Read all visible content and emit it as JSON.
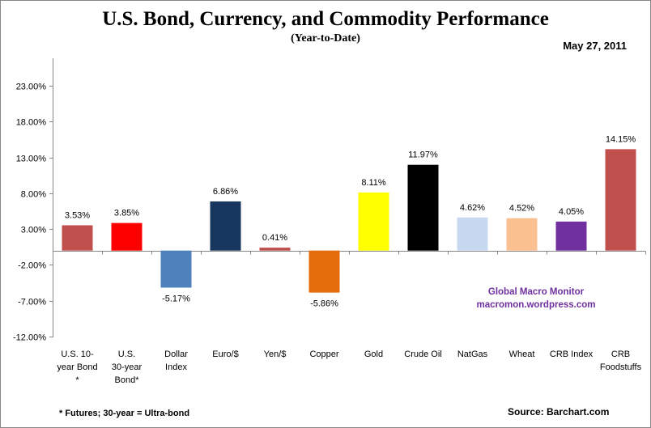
{
  "chart_data": {
    "type": "bar",
    "title": "U.S. Bond, Currency, and Commodity Performance",
    "subtitle": "(Year-to-Date)",
    "date": "May 27, 2011",
    "xlabel": "",
    "ylabel": "",
    "ylim": [
      -12,
      23
    ],
    "yticks": [
      23,
      18,
      13,
      8,
      3,
      -2,
      -7,
      -12
    ],
    "ytick_labels": [
      "23.00%",
      "18.00%",
      "13.00%",
      "8.00%",
      "3.00%",
      "-2.00%",
      "-7.00%",
      "-12.00%"
    ],
    "grid": false,
    "legend": "none",
    "categories": [
      [
        "U.S. 10-",
        "year Bond",
        "*"
      ],
      [
        "U.S.",
        "30-year",
        "Bond*"
      ],
      [
        "Dollar",
        "Index"
      ],
      [
        "Euro/$"
      ],
      [
        "Yen/$"
      ],
      [
        "Copper"
      ],
      [
        "Gold"
      ],
      [
        "Crude Oil"
      ],
      [
        "NatGas"
      ],
      [
        "Wheat"
      ],
      [
        "CRB Index"
      ],
      [
        "CRB",
        "Foodstuffs"
      ]
    ],
    "values": [
      3.53,
      3.85,
      -5.17,
      6.86,
      0.41,
      -5.86,
      8.11,
      11.97,
      4.62,
      4.52,
      4.05,
      14.15
    ],
    "value_labels": [
      "3.53%",
      "3.85%",
      "-5.17%",
      "6.86%",
      "0.41%",
      "-5.86%",
      "8.11%",
      "11.97%",
      "4.62%",
      "4.52%",
      "4.05%",
      "14.15%"
    ],
    "colors": [
      "#c0504d",
      "#ff0000",
      "#4f81bd",
      "#17375e",
      "#c0504d",
      "#e46c0a",
      "#ffff00",
      "#000000",
      "#c6d9f1",
      "#fac090",
      "#7030a0",
      "#c0504d"
    ],
    "annotations": [
      "Global Macro Monitor",
      "macromon.wordpress.com"
    ]
  },
  "footnote": "* Futures; 30-year = Ultra-bond",
  "source": "Source: Barchart.com"
}
